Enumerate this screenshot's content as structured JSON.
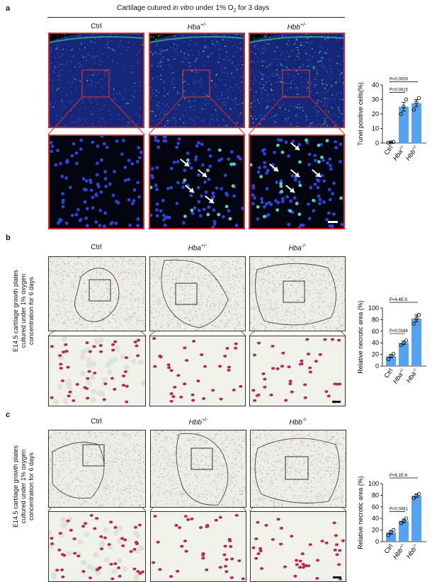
{
  "panel_a": {
    "letter": "a",
    "title_prefix": "Cartilage cutured ",
    "title_italic": "in vitro",
    "title_mid": " under 1% O",
    "title_sub": "2",
    "title_suffix": " for 3 days",
    "columns": [
      {
        "gene": "Ctrl",
        "sup": ""
      },
      {
        "gene": "Hba",
        "sup": "+/-"
      },
      {
        "gene": "Hbb",
        "sup": "+/-"
      }
    ]
  },
  "panel_b": {
    "letter": "b",
    "side_label": [
      "E14.5 cartilage growth plates",
      "cultured under 1% oxygen",
      "concentration for 6 days"
    ],
    "columns": [
      {
        "gene": "Ctrl",
        "sup": ""
      },
      {
        "gene": "Hba",
        "sup": "+/-"
      },
      {
        "gene": "Hba",
        "sup": "-/-"
      }
    ]
  },
  "panel_c": {
    "letter": "c",
    "side_label": [
      "E14.5 cartilage growth plates",
      "cultured under 1% oxygen",
      "concentration for 6 days"
    ],
    "columns": [
      {
        "gene": "Ctrl",
        "sup": ""
      },
      {
        "gene": "Hbb",
        "sup": "+/-"
      },
      {
        "gene": "Hbb",
        "sup": "-/-"
      }
    ]
  },
  "colors": {
    "bar": "#55a3ef",
    "frame_a": "#d52a2a",
    "fluor_bg": "#0a1440",
    "stain_bg": "#e9ece4"
  },
  "chart_data": [
    {
      "type": "bar",
      "panel": "a",
      "ylabel": "Tunel positive cells(%)",
      "categories": [
        {
          "gene": "Ctrl",
          "sup": ""
        },
        {
          "gene": "Hba",
          "sup": "+/-"
        },
        {
          "gene": "Hbb",
          "sup": "+/-"
        }
      ],
      "values": [
        0.5,
        25,
        27.5
      ],
      "errors": [
        0.3,
        3,
        2.5
      ],
      "points": [
        [
          0.2,
          0.5,
          0.8
        ],
        [
          20,
          25,
          30
        ],
        [
          23,
          28,
          31
        ]
      ],
      "ylim": [
        0,
        40
      ],
      "yticks": [
        0,
        10,
        20,
        30,
        40
      ],
      "pvalues": [
        {
          "text": "P=0.0015",
          "from": 0,
          "to": 1
        },
        {
          "text": "P=0.0009",
          "from": 0,
          "to": 2
        }
      ]
    },
    {
      "type": "bar",
      "panel": "b",
      "ylabel": "Relative necrotic area (%)",
      "categories": [
        {
          "gene": "Ctrl",
          "sup": ""
        },
        {
          "gene": "Hba",
          "sup": "+/-"
        },
        {
          "gene": "Hba",
          "sup": "-/-"
        }
      ],
      "values": [
        17,
        40,
        82
      ],
      "errors": [
        3,
        3,
        6
      ],
      "points": [
        [
          12,
          17,
          21
        ],
        [
          36,
          40,
          44
        ],
        [
          73,
          82,
          88
        ]
      ],
      "ylim": [
        0,
        100
      ],
      "yticks": [
        0,
        20,
        40,
        60,
        80,
        100
      ],
      "pvalues": [
        {
          "text": "P=0.0168",
          "from": 0,
          "to": 1
        },
        {
          "text": "P=4.4E-5",
          "from": 0,
          "to": 2
        }
      ]
    },
    {
      "type": "bar",
      "panel": "c",
      "ylabel": "Relative necrotic area (%)",
      "categories": [
        {
          "gene": "Ctrl",
          "sup": ""
        },
        {
          "gene": "Hbb",
          "sup": "+/-"
        },
        {
          "gene": "Hbb",
          "sup": "-/-"
        }
      ],
      "values": [
        16,
        36,
        79
      ],
      "errors": [
        3,
        3,
        3
      ],
      "points": [
        [
          11,
          16,
          20
        ],
        [
          32,
          35,
          40
        ],
        [
          75,
          79,
          82
        ]
      ],
      "ylim": [
        0,
        100
      ],
      "yticks": [
        0,
        20,
        40,
        60,
        80,
        100
      ],
      "pvalues": [
        {
          "text": "P=0.0081",
          "from": 0,
          "to": 1
        },
        {
          "text": "P=6.1E-6",
          "from": 0,
          "to": 2
        }
      ]
    }
  ]
}
